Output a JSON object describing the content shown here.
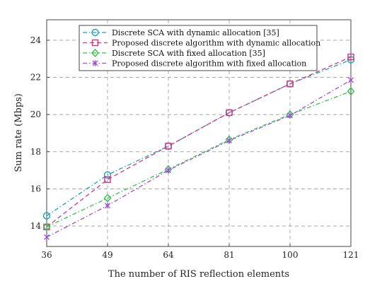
{
  "chart_data": {
    "type": "line",
    "title": "",
    "xlabel": "The number of RIS reflection elements",
    "ylabel": "Sum rate (Mbps)",
    "x": [
      36,
      49,
      64,
      81,
      100,
      121
    ],
    "x_tick_labels": [
      "36",
      "49",
      "64",
      "81",
      "100",
      "121"
    ],
    "y_ticks": [
      14,
      16,
      18,
      20,
      22,
      24
    ],
    "y_tick_labels": [
      "14",
      "16",
      "18",
      "20",
      "22",
      "24"
    ],
    "ylim": [
      12.9,
      25.1
    ],
    "grid": true,
    "grid_style": "dashed",
    "legend_position": "top",
    "series": [
      {
        "name": "Discrete SCA with dynamic allocation [35]",
        "values": [
          14.55,
          16.75,
          18.3,
          20.1,
          21.65,
          22.95
        ],
        "color": "#1aa3b8",
        "dash": "dashdot",
        "marker": "circle"
      },
      {
        "name": "Proposed discrete algorithm with dynamic allocation",
        "values": [
          13.95,
          16.5,
          18.3,
          20.1,
          21.65,
          23.1
        ],
        "color": "#d63384",
        "dash": "dashed",
        "marker": "square"
      },
      {
        "name": "Discrete SCA with fixed allocation [35]",
        "values": [
          13.95,
          15.5,
          17.05,
          18.65,
          20.0,
          21.25
        ],
        "color": "#33c24a",
        "dash": "dashdot",
        "marker": "diamond"
      },
      {
        "name": "Proposed discrete algorithm with fixed allocation",
        "values": [
          13.4,
          15.1,
          17.0,
          18.6,
          19.95,
          21.85
        ],
        "color": "#9b4fd0",
        "dash": "dashdot",
        "marker": "star"
      }
    ]
  }
}
